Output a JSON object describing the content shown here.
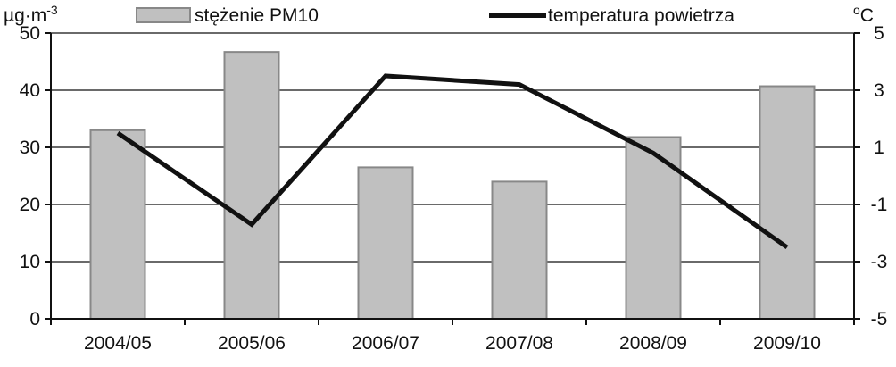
{
  "chart_data": {
    "type": "bar+line",
    "categories": [
      "2004/05",
      "2005/06",
      "2006/07",
      "2007/08",
      "2008/09",
      "2009/10"
    ],
    "series": [
      {
        "name": "stężenie PM10",
        "type": "bar",
        "axis": "left",
        "values": [
          33,
          46.7,
          26.5,
          24,
          31.8,
          40.7
        ],
        "color": "#c0c0c0",
        "edge": "#888888"
      },
      {
        "name": "temperatura powietrza",
        "type": "line",
        "axis": "right",
        "values": [
          1.5,
          -1.7,
          3.5,
          3.2,
          0.8,
          -2.5
        ],
        "color": "#111111"
      }
    ],
    "y_left": {
      "unit_main": "µg·m",
      "unit_sup": "-3",
      "ylim": [
        0,
        50
      ],
      "ticks": [
        0,
        10,
        20,
        30,
        40,
        50
      ]
    },
    "y_right": {
      "unit_main": "C",
      "unit_sup": "o",
      "ylim": [
        -5,
        5
      ],
      "ticks": [
        -5,
        -3,
        -1,
        1,
        3,
        5
      ]
    },
    "grid": true,
    "legend": "top"
  }
}
